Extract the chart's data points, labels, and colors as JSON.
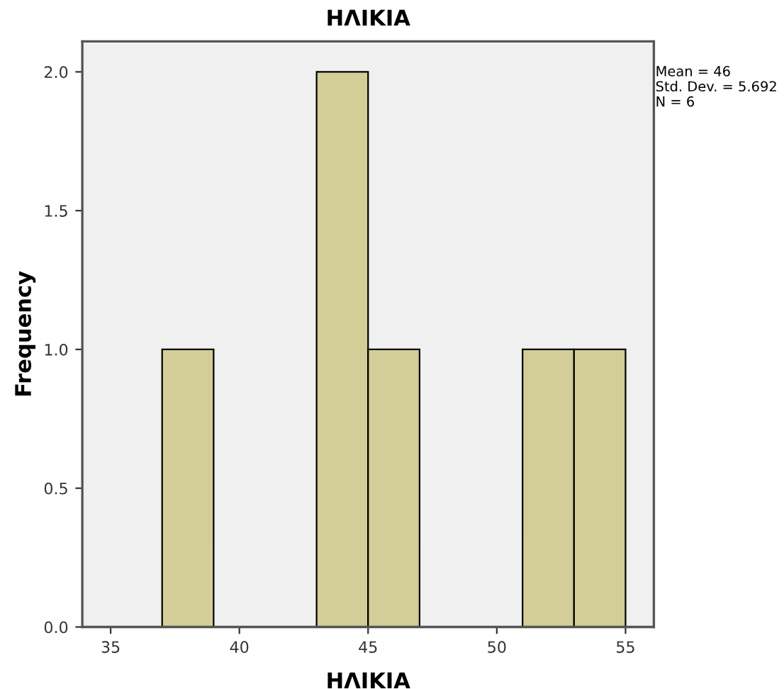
{
  "chart_data": {
    "type": "histogram",
    "title": "ΗΛΙΚΙΑ",
    "xlabel": "ΗΛΙΚΙΑ",
    "ylabel": "Frequency",
    "bins": [
      37,
      39,
      41,
      43,
      45,
      47,
      49,
      51,
      53,
      55
    ],
    "values": [
      1,
      0,
      0,
      2,
      1,
      0,
      0,
      1,
      1
    ],
    "color": "#d3ce98",
    "xlim": [
      33.9,
      56.1
    ],
    "xticks": [
      35,
      40,
      45,
      50,
      55
    ],
    "ylim": [
      0,
      2.11
    ],
    "yticks": [
      {
        "value": 0,
        "label": "0.0"
      },
      {
        "value": 0.5,
        "label": "0.5"
      },
      {
        "value": 1,
        "label": "1.0"
      },
      {
        "value": 1.5,
        "label": "1.5"
      },
      {
        "value": 2,
        "label": "2.0"
      }
    ],
    "grid": false,
    "annotations": [
      "Mean = 46",
      "Std. Dev. = 5.692",
      "N = 6"
    ]
  }
}
